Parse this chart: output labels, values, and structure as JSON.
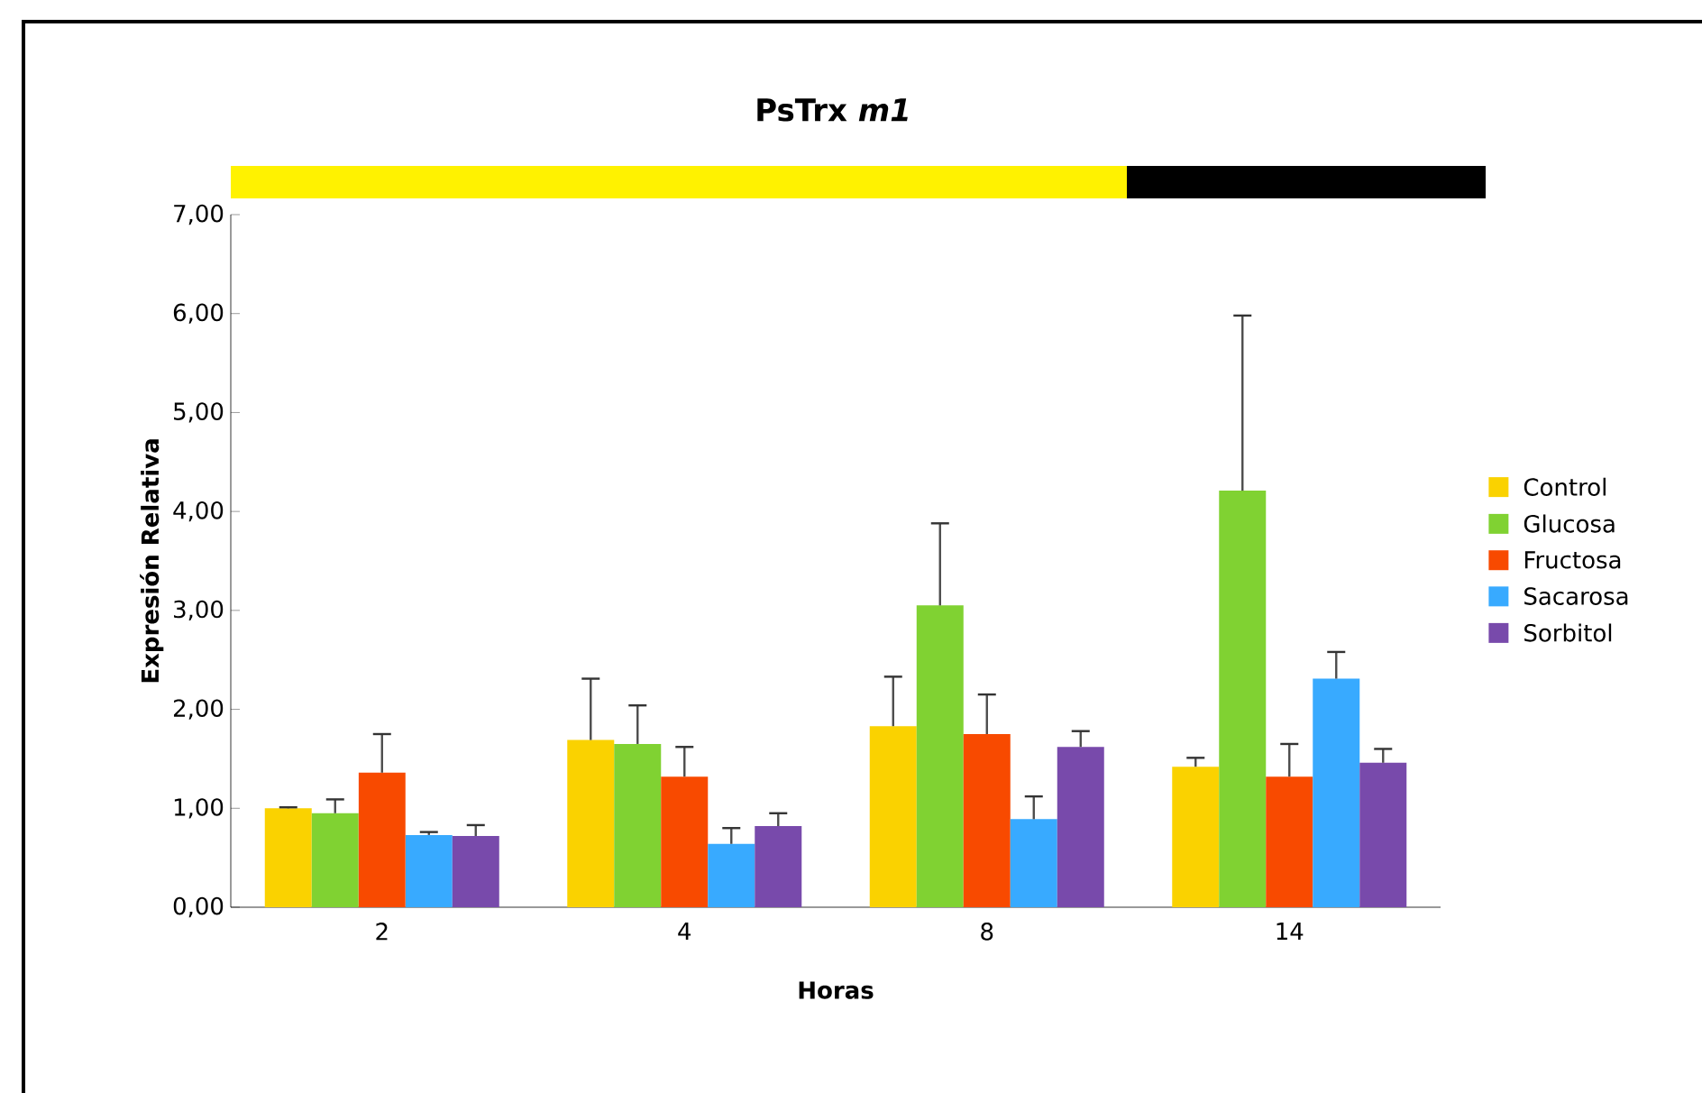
{
  "chart_data": {
    "type": "bar",
    "title": "PsTrx *m1*",
    "xlabel": "Horas",
    "ylabel": "Expresión Relativa",
    "categories": [
      "2",
      "4",
      "8",
      "14"
    ],
    "series": [
      {
        "name": "Control",
        "color": "#fad200",
        "values": [
          1.0,
          1.69,
          1.83,
          1.42
        ],
        "errors": [
          0.01,
          0.62,
          0.5,
          0.09
        ]
      },
      {
        "name": "Glucosa",
        "color": "#80d232",
        "values": [
          0.95,
          1.65,
          3.05,
          4.21
        ],
        "errors": [
          0.14,
          0.39,
          0.83,
          1.77
        ]
      },
      {
        "name": "Fructosa",
        "color": "#f84a00",
        "values": [
          1.36,
          1.32,
          1.75,
          1.32
        ],
        "errors": [
          0.39,
          0.3,
          0.4,
          0.33
        ]
      },
      {
        "name": "Sacarosa",
        "color": "#38aaff",
        "values": [
          0.73,
          0.64,
          0.89,
          2.31
        ],
        "errors": [
          0.03,
          0.16,
          0.23,
          0.27
        ]
      },
      {
        "name": "Sorbitol",
        "color": "#784aab",
        "values": [
          0.72,
          0.82,
          1.62,
          1.46
        ],
        "errors": [
          0.11,
          0.13,
          0.16,
          0.14
        ]
      }
    ],
    "ylim": [
      0,
      7
    ],
    "yticks": [
      {
        "value": 0,
        "label": "0,00"
      },
      {
        "value": 1,
        "label": "1,00"
      },
      {
        "value": 2,
        "label": "2,00"
      },
      {
        "value": 3,
        "label": "3,00"
      },
      {
        "value": 4,
        "label": "4,00"
      },
      {
        "value": 5,
        "label": "5,00"
      },
      {
        "value": 6,
        "label": "6,00"
      },
      {
        "value": 7,
        "label": "7,00"
      }
    ],
    "grid": false,
    "legend": "right"
  }
}
